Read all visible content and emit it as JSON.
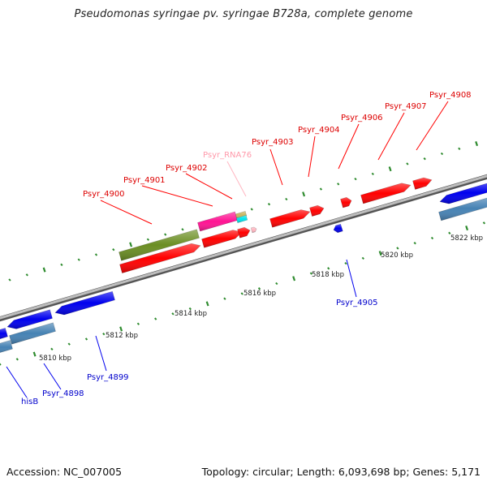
{
  "title": "Pseudomonas syringae pv. syringae B728a, complete genome",
  "footer": {
    "accession": "Accession: NC_007005",
    "summary": "Topology: circular; Length: 6,093,698 bp; Genes: 5,171"
  },
  "colors": {
    "backbone": "#8c8c8c",
    "tick": "#2e8b2e",
    "red": "#ff0000",
    "blue": "#0000ee",
    "steelblue": "#4682b4",
    "olive": "#6b8e23",
    "magenta": "#ff1493",
    "cyan": "#00e5ee",
    "tan": "#c8b560",
    "pink": "#ffb6c1",
    "label_red": "#dd0000",
    "label_blue": "#0000cc",
    "label_pink": "#ff99aa"
  },
  "scale_labels": [
    "5810 kbp",
    "5812 kbp",
    "5814 kbp",
    "5816 kbp",
    "5818 kbp",
    "5820 kbp",
    "5822 kbp"
  ],
  "upper_gene_labels": [
    "Psyr_4900",
    "Psyr_4901",
    "Psyr_4902",
    "Psyr_RNA76",
    "Psyr_4903",
    "Psyr_4904",
    "Psyr_4906",
    "Psyr_4907",
    "Psyr_4908"
  ],
  "lower_gene_labels": [
    "hisB",
    "Psyr_4898",
    "Psyr_4899",
    "Psyr_4905"
  ]
}
